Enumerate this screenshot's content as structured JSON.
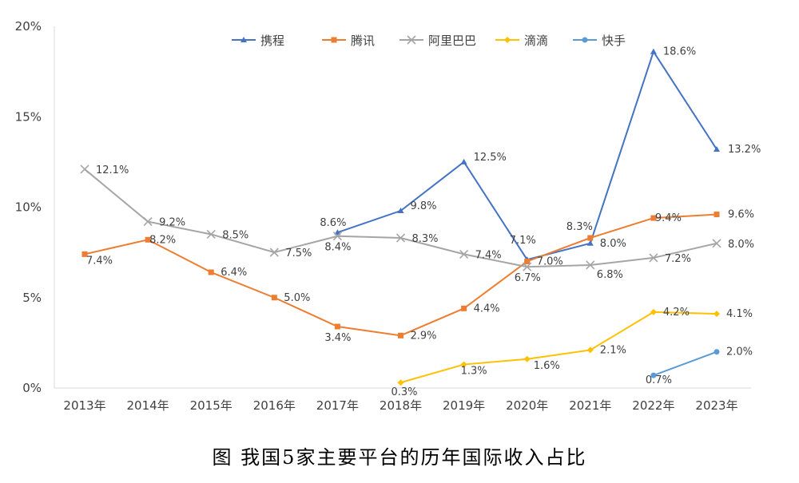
{
  "chart_data": {
    "type": "line",
    "title": "图 我国5家主要平台的历年国际收入占比",
    "categories": [
      "2013年",
      "2014年",
      "2015年",
      "2016年",
      "2017年",
      "2018年",
      "2019年",
      "2020年",
      "2021年",
      "2022年",
      "2023年"
    ],
    "ylim": [
      0,
      20
    ],
    "yticks": [
      "0%",
      "5%",
      "10%",
      "15%",
      "20%"
    ],
    "grid": false,
    "legend": "top",
    "series": [
      {
        "name": "携程",
        "color": "#4472C4",
        "marker": "triangle",
        "values": [
          null,
          null,
          null,
          null,
          8.6,
          9.8,
          12.5,
          7.1,
          8.0,
          18.6,
          13.2
        ]
      },
      {
        "name": "腾讯",
        "color": "#ED7D31",
        "marker": "square",
        "values": [
          7.4,
          8.2,
          6.4,
          5.0,
          3.4,
          2.9,
          4.4,
          7.0,
          8.3,
          9.4,
          9.6
        ]
      },
      {
        "name": "阿里巴巴",
        "color": "#A5A5A5",
        "marker": "x",
        "values": [
          12.1,
          9.2,
          8.5,
          7.5,
          8.4,
          8.3,
          7.4,
          6.7,
          6.8,
          7.2,
          8.0
        ]
      },
      {
        "name": "滴滴",
        "color": "#FFC000",
        "marker": "diamond",
        "values": [
          null,
          null,
          null,
          null,
          null,
          0.3,
          1.3,
          1.6,
          2.1,
          4.2,
          4.1
        ]
      },
      {
        "name": "快手",
        "color": "#5B9BD5",
        "marker": "circle",
        "values": [
          null,
          null,
          null,
          null,
          null,
          null,
          null,
          null,
          null,
          0.7,
          2.0
        ]
      }
    ]
  }
}
